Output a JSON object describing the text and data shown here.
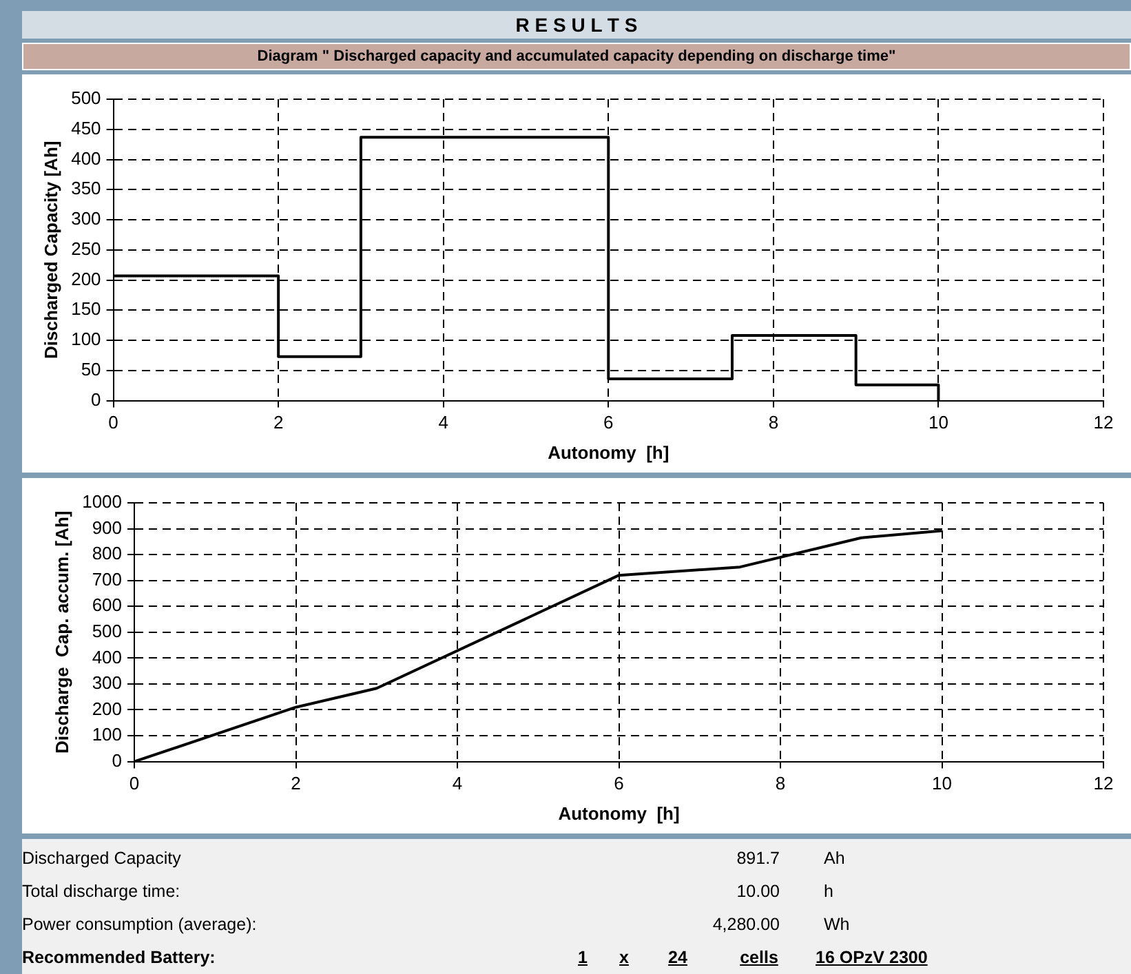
{
  "chart_data": [
    {
      "type": "step",
      "title": "R E S U L T S",
      "subtitle": "Diagram \" Discharged capacity and accumulated capacity depending on discharge time\"",
      "x": [
        0,
        2,
        3,
        6,
        7.5,
        9,
        10
      ],
      "values": [
        207,
        73,
        437,
        36,
        108,
        26,
        0
      ],
      "color": "#000000",
      "xlabel": "Autonomy  [h]",
      "ylabel": "Discharged Capacity [Ah]",
      "xlim": [
        0,
        12
      ],
      "xticks": [
        0,
        2,
        4,
        6,
        8,
        10,
        12
      ],
      "ylim": [
        0,
        500
      ],
      "yticks": [
        0,
        50,
        100,
        150,
        200,
        250,
        300,
        350,
        400,
        450,
        500
      ],
      "grid": true,
      "legend": false
    },
    {
      "type": "line",
      "x": [
        0,
        2,
        3,
        6,
        7.5,
        9,
        10
      ],
      "values": [
        0,
        210,
        283,
        720,
        752,
        865,
        892
      ],
      "color": "#000000",
      "xlabel": "Autonomy  [h]",
      "ylabel": "Discharge  Cap. accum. [Ah]",
      "xlim": [
        0,
        12
      ],
      "xticks": [
        0,
        2,
        4,
        6,
        8,
        10,
        12
      ],
      "ylim": [
        0,
        1000
      ],
      "yticks": [
        0,
        100,
        200,
        300,
        400,
        500,
        600,
        700,
        800,
        900,
        1000
      ],
      "grid": true,
      "legend": false,
      "marker": "none",
      "annotations": [
        "Discharged Capacity",
        "891.7",
        "Ah",
        "Total discharge time:",
        "10.00",
        "h",
        "Power consumption (average):",
        "4,280.00",
        "Wh",
        "Recommended Battery:",
        "1",
        "x",
        "24",
        "cells",
        "16 OPzV 2300"
      ]
    }
  ]
}
